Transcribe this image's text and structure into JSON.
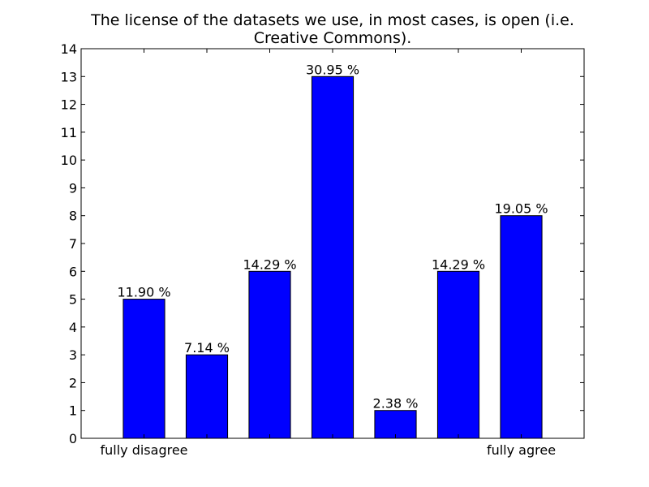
{
  "chart_data": {
    "type": "bar",
    "title_lines": [
      "The license of the datasets we use, in most cases, is open (i.e.",
      "Creative Commons)."
    ],
    "categories": [
      "fully disagree",
      "",
      "",
      "",
      "",
      "",
      "fully agree"
    ],
    "values": [
      5,
      3,
      6,
      13,
      1,
      6,
      8
    ],
    "data_labels": [
      "11.90 %",
      "7.14 %",
      "14.29 %",
      "30.95 %",
      "2.38 %",
      "14.29 %",
      "19.05 %"
    ],
    "ylim": [
      0,
      14
    ],
    "yticks": [
      0,
      1,
      2,
      3,
      4,
      5,
      6,
      7,
      8,
      9,
      10,
      11,
      12,
      13,
      14
    ],
    "xlabel": "",
    "ylabel": "",
    "bar_color": "#0000ff",
    "grid": false
  }
}
